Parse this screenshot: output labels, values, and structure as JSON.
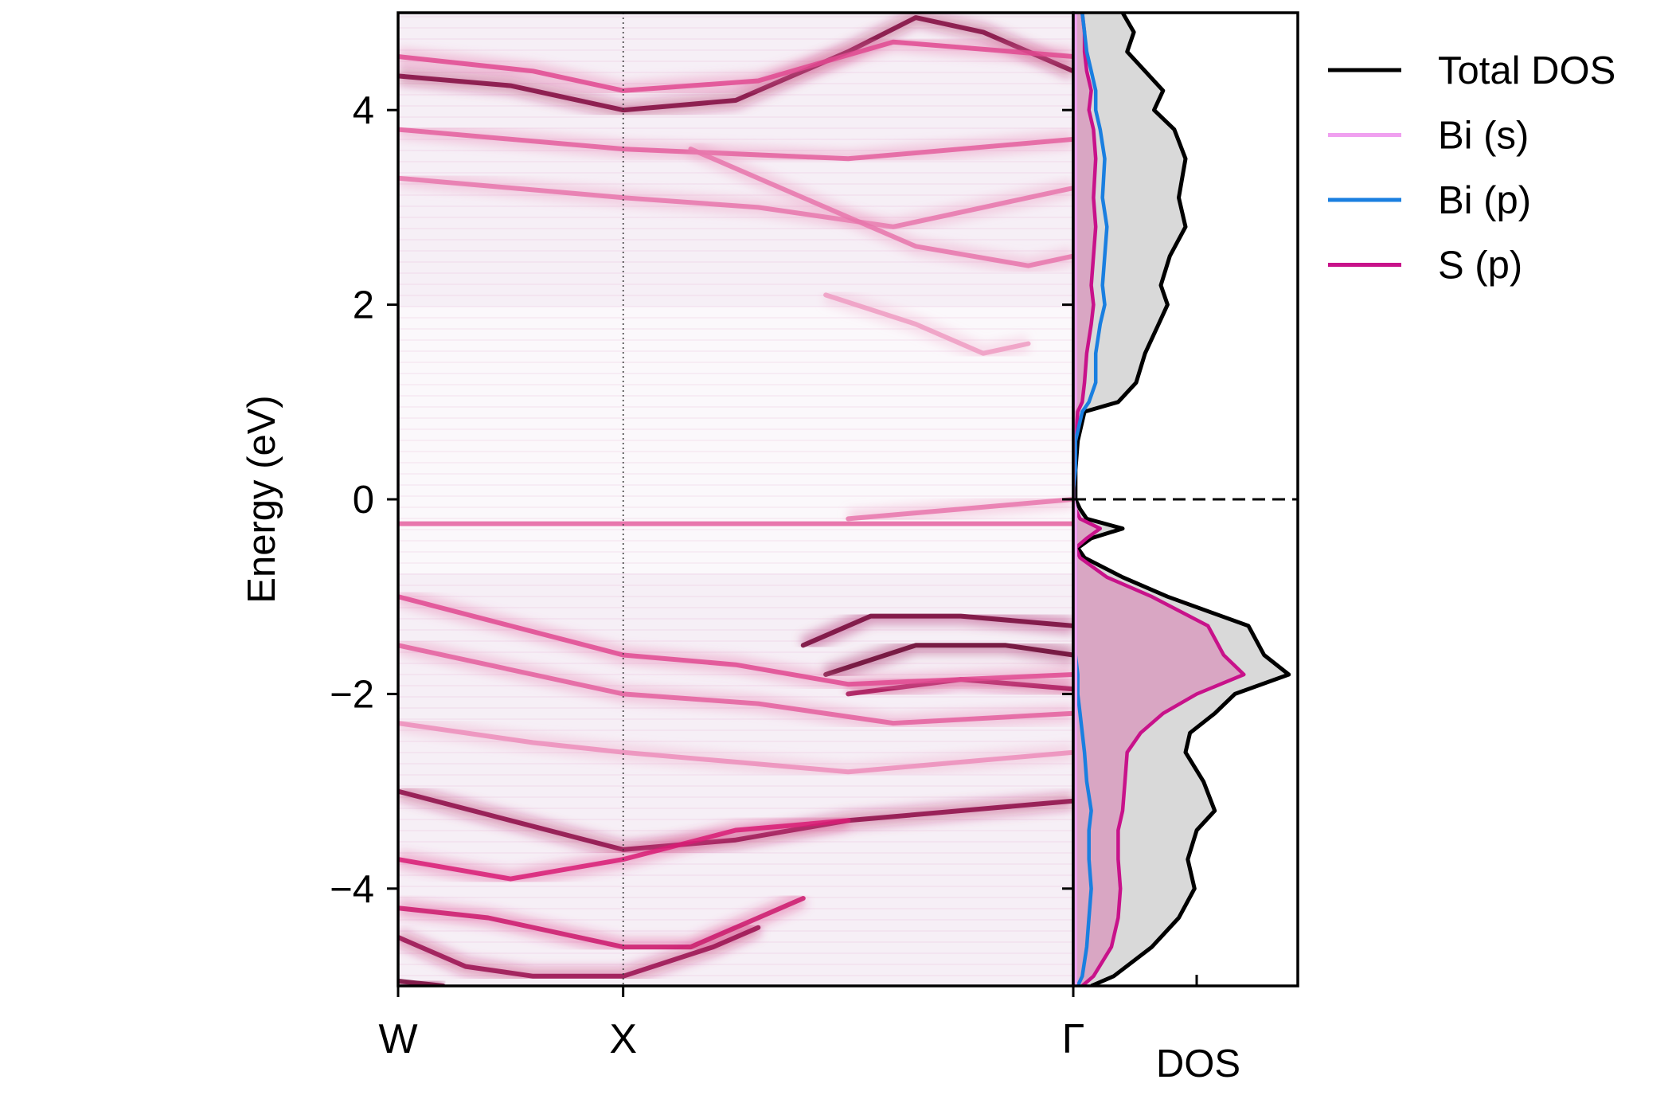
{
  "chart_data": [
    {
      "type": "heatmap",
      "ylabel": "Energy (eV)",
      "ylim": [
        -5,
        5
      ],
      "yticks": [
        -4,
        -2,
        0,
        2,
        4
      ],
      "ytick_labels": [
        "−4",
        "−2",
        "0",
        "2",
        "4"
      ],
      "kpath": [
        "W",
        "X",
        "Γ"
      ],
      "kpath_positions": [
        0,
        1,
        3
      ],
      "colormap": [
        "#ffffff",
        "#d81b74",
        "#5a0026"
      ],
      "bands": [
        {
          "name": "cb_bottom",
          "points": [
            [
              0,
              4.35
            ],
            [
              0.5,
              4.25
            ],
            [
              1,
              4.0
            ],
            [
              1.5,
              4.1
            ],
            [
              2,
              4.6
            ],
            [
              2.3,
              4.95
            ],
            [
              2.6,
              4.8
            ],
            [
              3,
              4.4
            ]
          ],
          "weight": 0.85
        },
        {
          "name": "cb_2",
          "points": [
            [
              0,
              4.55
            ],
            [
              0.6,
              4.4
            ],
            [
              1,
              4.2
            ],
            [
              1.6,
              4.3
            ],
            [
              2.2,
              4.7
            ],
            [
              3,
              4.55
            ]
          ],
          "weight": 0.4
        },
        {
          "name": "cb_3",
          "points": [
            [
              0,
              3.8
            ],
            [
              1,
              3.6
            ],
            [
              2,
              3.5
            ],
            [
              3,
              3.7
            ]
          ],
          "weight": 0.35
        },
        {
          "name": "cb_4",
          "points": [
            [
              0,
              3.3
            ],
            [
              1,
              3.1
            ],
            [
              1.6,
              3.0
            ],
            [
              2.2,
              2.8
            ],
            [
              3,
              3.2
            ]
          ],
          "weight": 0.3
        },
        {
          "name": "cb_5",
          "points": [
            [
              1.3,
              3.6
            ],
            [
              1.8,
              3.1
            ],
            [
              2.3,
              2.6
            ],
            [
              2.8,
              2.4
            ],
            [
              3,
              2.5
            ]
          ],
          "weight": 0.3
        },
        {
          "name": "cb_6",
          "points": [
            [
              1.9,
              2.1
            ],
            [
              2.3,
              1.8
            ],
            [
              2.6,
              1.5
            ],
            [
              2.8,
              1.6
            ]
          ],
          "weight": 0.22
        },
        {
          "name": "midgap",
          "points": [
            [
              0,
              -0.25
            ],
            [
              1,
              -0.25
            ],
            [
              2,
              -0.25
            ],
            [
              3,
              -0.25
            ]
          ],
          "weight": 0.35
        },
        {
          "name": "vb_top",
          "points": [
            [
              2,
              -0.2
            ],
            [
              2.5,
              -0.1
            ],
            [
              3,
              0.0
            ]
          ],
          "weight": 0.3
        },
        {
          "name": "vb_hot_1",
          "points": [
            [
              1.8,
              -1.5
            ],
            [
              2.1,
              -1.2
            ],
            [
              2.5,
              -1.2
            ],
            [
              3,
              -1.3
            ]
          ],
          "weight": 0.9
        },
        {
          "name": "vb_hot_2",
          "points": [
            [
              1.9,
              -1.8
            ],
            [
              2.3,
              -1.5
            ],
            [
              2.7,
              -1.5
            ],
            [
              3,
              -1.6
            ]
          ],
          "weight": 0.95
        },
        {
          "name": "vb_hot_3",
          "points": [
            [
              2.0,
              -2.0
            ],
            [
              2.5,
              -1.85
            ],
            [
              3,
              -1.95
            ]
          ],
          "weight": 0.7
        },
        {
          "name": "vb_a",
          "points": [
            [
              0,
              -1.0
            ],
            [
              0.5,
              -1.3
            ],
            [
              1,
              -1.6
            ],
            [
              1.5,
              -1.7
            ],
            [
              2,
              -1.9
            ],
            [
              3,
              -1.8
            ]
          ],
          "weight": 0.4
        },
        {
          "name": "vb_b",
          "points": [
            [
              0,
              -1.5
            ],
            [
              0.6,
              -1.8
            ],
            [
              1,
              -2.0
            ],
            [
              1.6,
              -2.1
            ],
            [
              2.2,
              -2.3
            ],
            [
              3,
              -2.2
            ]
          ],
          "weight": 0.35
        },
        {
          "name": "vb_c",
          "points": [
            [
              0,
              -2.3
            ],
            [
              0.6,
              -2.5
            ],
            [
              1,
              -2.6
            ],
            [
              1.5,
              -2.7
            ],
            [
              2.0,
              -2.8
            ],
            [
              3,
              -2.6
            ]
          ],
          "weight": 0.25
        },
        {
          "name": "vb_d",
          "points": [
            [
              0,
              -3.0
            ],
            [
              0.5,
              -3.3
            ],
            [
              1,
              -3.6
            ],
            [
              1.5,
              -3.5
            ],
            [
              2,
              -3.3
            ],
            [
              2.5,
              -3.2
            ],
            [
              3,
              -3.1
            ]
          ],
          "weight": 0.8
        },
        {
          "name": "vb_e",
          "points": [
            [
              0,
              -3.7
            ],
            [
              0.5,
              -3.9
            ],
            [
              1,
              -3.7
            ],
            [
              1.5,
              -3.4
            ],
            [
              2,
              -3.3
            ]
          ],
          "weight": 0.5
        },
        {
          "name": "vb_f",
          "points": [
            [
              0,
              -4.2
            ],
            [
              0.4,
              -4.3
            ],
            [
              1,
              -4.6
            ],
            [
              1.3,
              -4.6
            ],
            [
              1.6,
              -4.3
            ],
            [
              1.8,
              -4.1
            ]
          ],
          "weight": 0.55
        },
        {
          "name": "vb_g",
          "points": [
            [
              0,
              -4.5
            ],
            [
              0.3,
              -4.8
            ],
            [
              0.6,
              -4.9
            ],
            [
              1,
              -4.9
            ],
            [
              1.4,
              -4.6
            ],
            [
              1.6,
              -4.4
            ]
          ],
          "weight": 0.75
        },
        {
          "name": "vb_h",
          "points": [
            [
              0,
              -4.95
            ],
            [
              0.2,
              -5.0
            ]
          ],
          "weight": 0.9
        }
      ]
    },
    {
      "type": "area",
      "xlabel": "DOS",
      "ylim": [
        -5,
        5
      ],
      "xlim": [
        0,
        1.0
      ],
      "legend_position": "outside-right",
      "fermi_level": 0,
      "y": [
        -5.0,
        -4.9,
        -4.6,
        -4.3,
        -4.0,
        -3.7,
        -3.4,
        -3.2,
        -2.9,
        -2.6,
        -2.4,
        -2.2,
        -2.0,
        -1.8,
        -1.6,
        -1.3,
        -1.0,
        -0.8,
        -0.6,
        -0.5,
        -0.4,
        -0.3,
        -0.2,
        -0.1,
        0.0,
        0.1,
        0.3,
        0.6,
        0.9,
        1.0,
        1.2,
        1.5,
        1.8,
        2.0,
        2.2,
        2.5,
        2.8,
        3.1,
        3.5,
        3.8,
        4.0,
        4.2,
        4.4,
        4.6,
        4.8,
        5.0
      ],
      "series": [
        {
          "name": "Total DOS",
          "color": "#000000",
          "fill": "#d9d9d9",
          "values": [
            0.08,
            0.18,
            0.35,
            0.47,
            0.54,
            0.51,
            0.55,
            0.63,
            0.58,
            0.5,
            0.52,
            0.63,
            0.72,
            0.96,
            0.85,
            0.78,
            0.42,
            0.22,
            0.05,
            0.02,
            0.08,
            0.22,
            0.06,
            0.03,
            0.01,
            0.01,
            0.01,
            0.02,
            0.05,
            0.2,
            0.28,
            0.32,
            0.38,
            0.42,
            0.39,
            0.43,
            0.5,
            0.47,
            0.5,
            0.45,
            0.36,
            0.4,
            0.32,
            0.24,
            0.27,
            0.22
          ]
        },
        {
          "name": "Bi (s)",
          "color": "#f0a0f0",
          "values": [
            0.01,
            0.01,
            0.01,
            0.01,
            0.01,
            0.01,
            0.01,
            0.01,
            0.01,
            0.01,
            0.01,
            0.01,
            0.01,
            0.01,
            0.01,
            0.01,
            0.01,
            0.01,
            0.01,
            0.01,
            0.01,
            0.01,
            0.01,
            0.01,
            0.0,
            0.0,
            0.0,
            0.0,
            0.0,
            0.01,
            0.01,
            0.01,
            0.01,
            0.01,
            0.01,
            0.01,
            0.01,
            0.01,
            0.01,
            0.01,
            0.01,
            0.01,
            0.01,
            0.01,
            0.01,
            0.01
          ]
        },
        {
          "name": "Bi (p)",
          "color": "#1a7fe0",
          "values": [
            0.02,
            0.04,
            0.06,
            0.07,
            0.08,
            0.07,
            0.07,
            0.08,
            0.06,
            0.05,
            0.04,
            0.03,
            0.02,
            0.02,
            0.01,
            0.01,
            0.01,
            0.01,
            0.01,
            0.01,
            0.01,
            0.01,
            0.01,
            0.01,
            0.0,
            0.0,
            0.01,
            0.01,
            0.04,
            0.07,
            0.1,
            0.1,
            0.12,
            0.14,
            0.13,
            0.14,
            0.15,
            0.13,
            0.14,
            0.12,
            0.1,
            0.1,
            0.08,
            0.06,
            0.05,
            0.04
          ]
        },
        {
          "name": "S (p)",
          "color": "#c8128a",
          "fill": "#d9a6c3",
          "values": [
            0.04,
            0.09,
            0.17,
            0.2,
            0.21,
            0.2,
            0.2,
            0.22,
            0.23,
            0.24,
            0.3,
            0.4,
            0.55,
            0.76,
            0.67,
            0.6,
            0.35,
            0.15,
            0.03,
            0.01,
            0.06,
            0.12,
            0.03,
            0.01,
            0.0,
            0.0,
            0.0,
            0.01,
            0.02,
            0.04,
            0.05,
            0.06,
            0.08,
            0.09,
            0.08,
            0.09,
            0.1,
            0.09,
            0.1,
            0.09,
            0.07,
            0.08,
            0.06,
            0.05,
            0.05,
            0.04
          ]
        }
      ]
    }
  ]
}
